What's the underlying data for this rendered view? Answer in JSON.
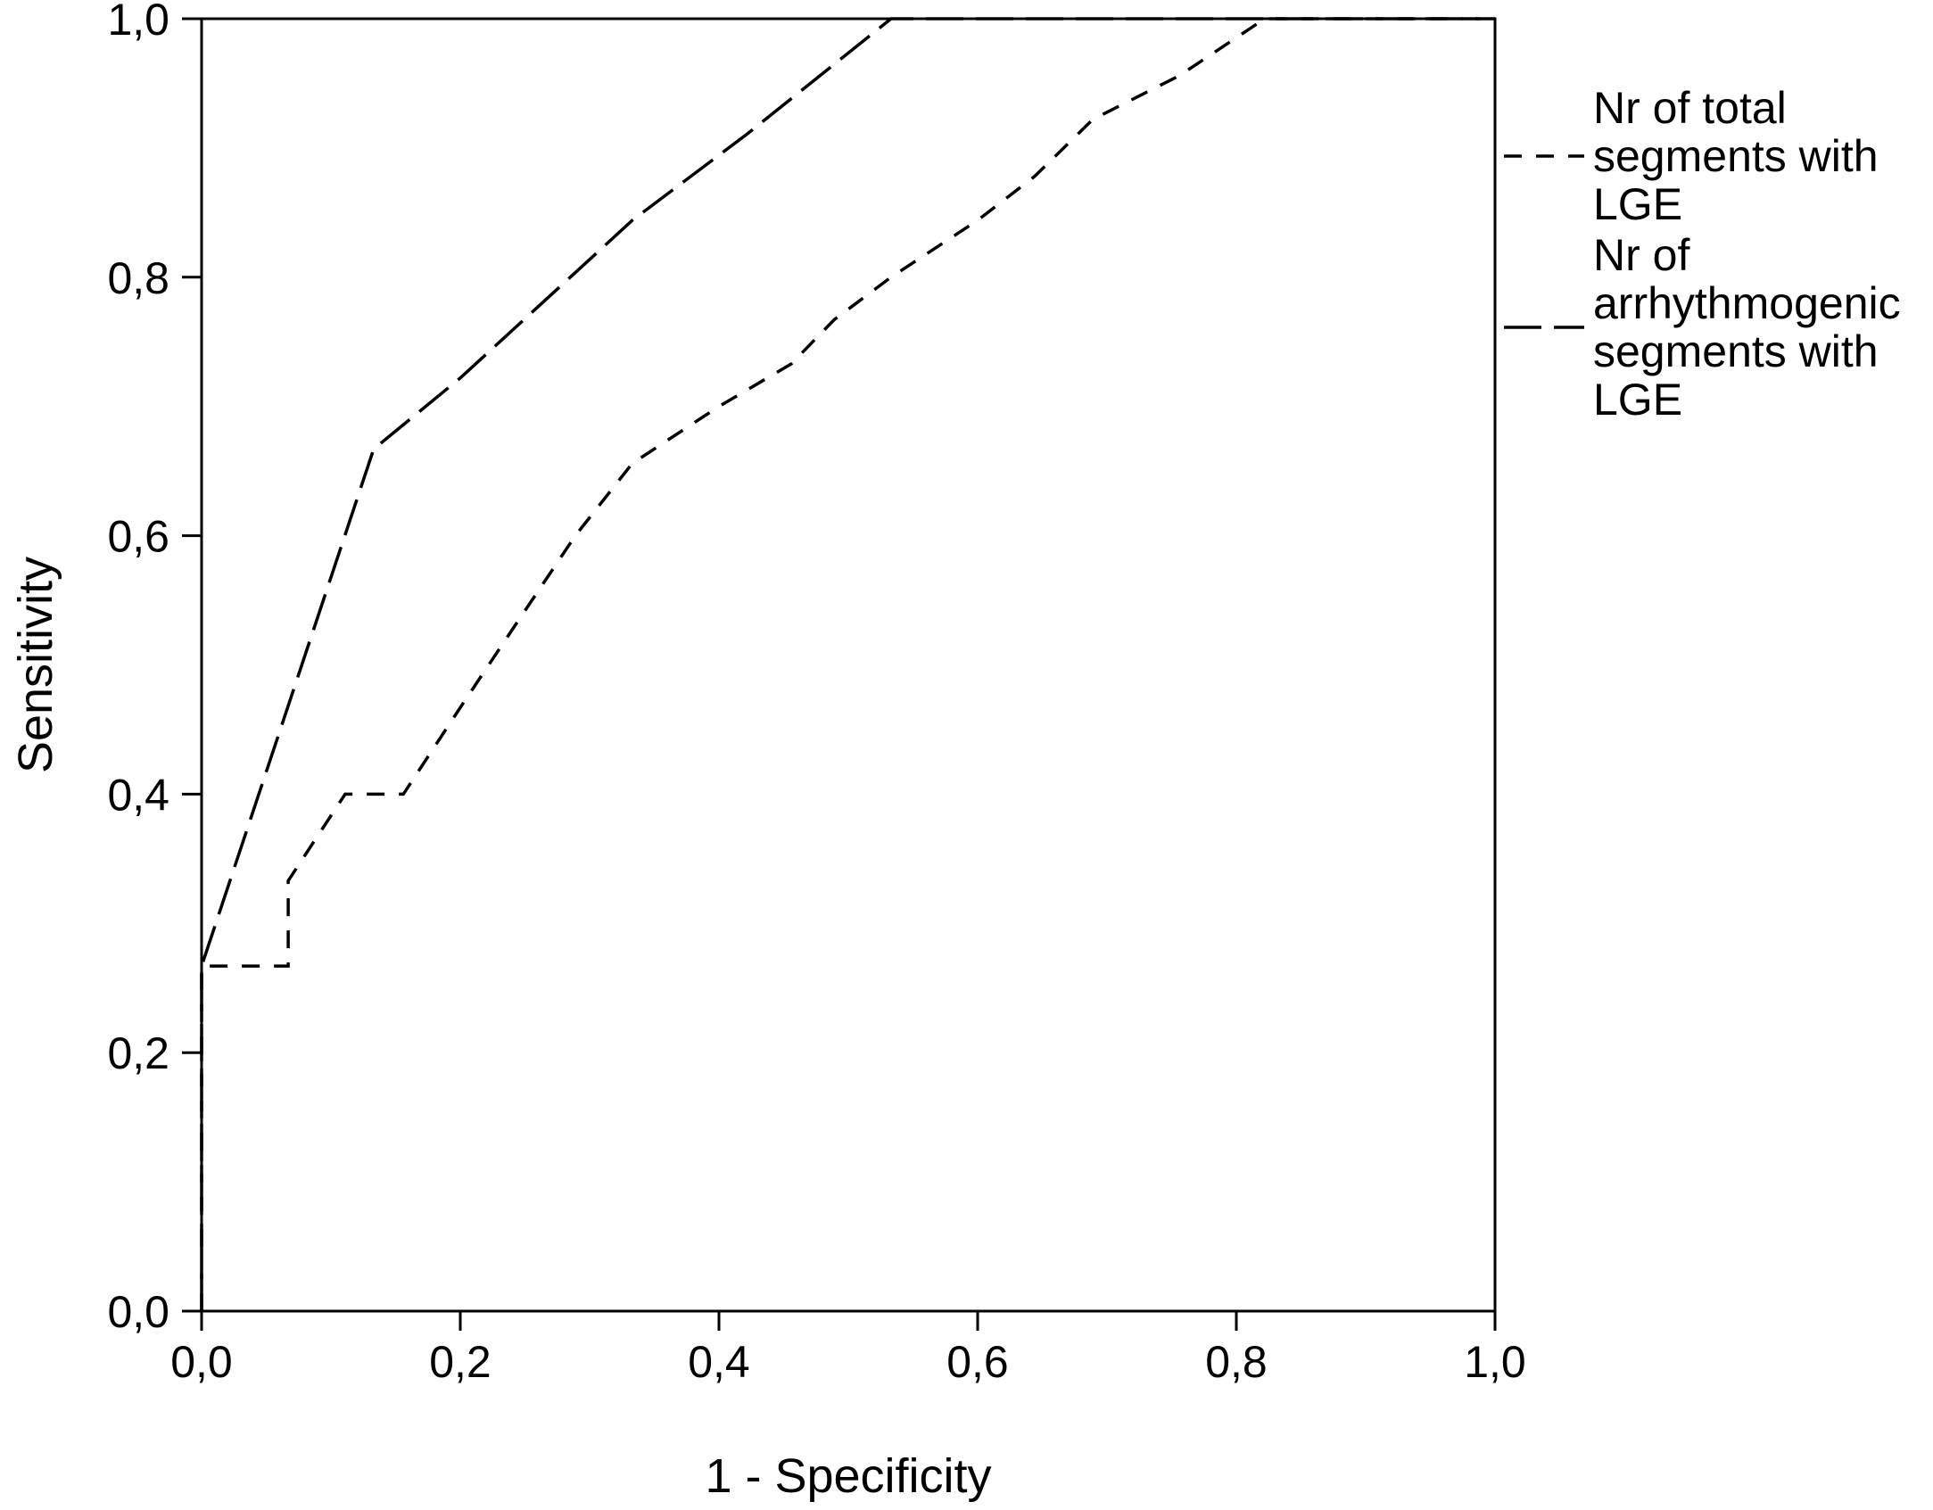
{
  "chart_data": {
    "type": "line",
    "title": "",
    "xlabel": "1 - Specificity",
    "ylabel": "Sensitivity",
    "xlim": [
      0,
      1
    ],
    "ylim": [
      0,
      1
    ],
    "xticks": [
      "0,0",
      "0,2",
      "0,4",
      "0,6",
      "0,8",
      "1,0"
    ],
    "yticks": [
      "0,0",
      "0,2",
      "0,4",
      "0,6",
      "0,8",
      "1,0"
    ],
    "grid": false,
    "legend_position": "right",
    "series": [
      {
        "name_lines": [
          "Nr of total",
          "segments with",
          "LGE"
        ],
        "style": "short-dash",
        "color": "#000000",
        "points": [
          [
            0.0,
            0.0
          ],
          [
            0.0,
            0.267
          ],
          [
            0.067,
            0.267
          ],
          [
            0.067,
            0.333
          ],
          [
            0.111,
            0.4
          ],
          [
            0.156,
            0.4
          ],
          [
            0.2,
            0.467
          ],
          [
            0.244,
            0.533
          ],
          [
            0.289,
            0.6
          ],
          [
            0.333,
            0.656
          ],
          [
            0.4,
            0.7
          ],
          [
            0.456,
            0.733
          ],
          [
            0.489,
            0.767
          ],
          [
            0.533,
            0.8
          ],
          [
            0.6,
            0.844
          ],
          [
            0.644,
            0.878
          ],
          [
            0.689,
            0.922
          ],
          [
            0.756,
            0.956
          ],
          [
            0.822,
            1.0
          ],
          [
            1.0,
            1.0
          ]
        ]
      },
      {
        "name_lines": [
          "Nr of",
          "arrhythmogenic",
          "segments with",
          "LGE"
        ],
        "style": "long-dash",
        "color": "#000000",
        "points": [
          [
            0.0,
            0.0
          ],
          [
            0.0,
            0.267
          ],
          [
            0.133,
            0.667
          ],
          [
            0.2,
            0.722
          ],
          [
            0.333,
            0.844
          ],
          [
            0.422,
            0.911
          ],
          [
            0.533,
            1.0
          ],
          [
            1.0,
            1.0
          ]
        ]
      }
    ]
  }
}
